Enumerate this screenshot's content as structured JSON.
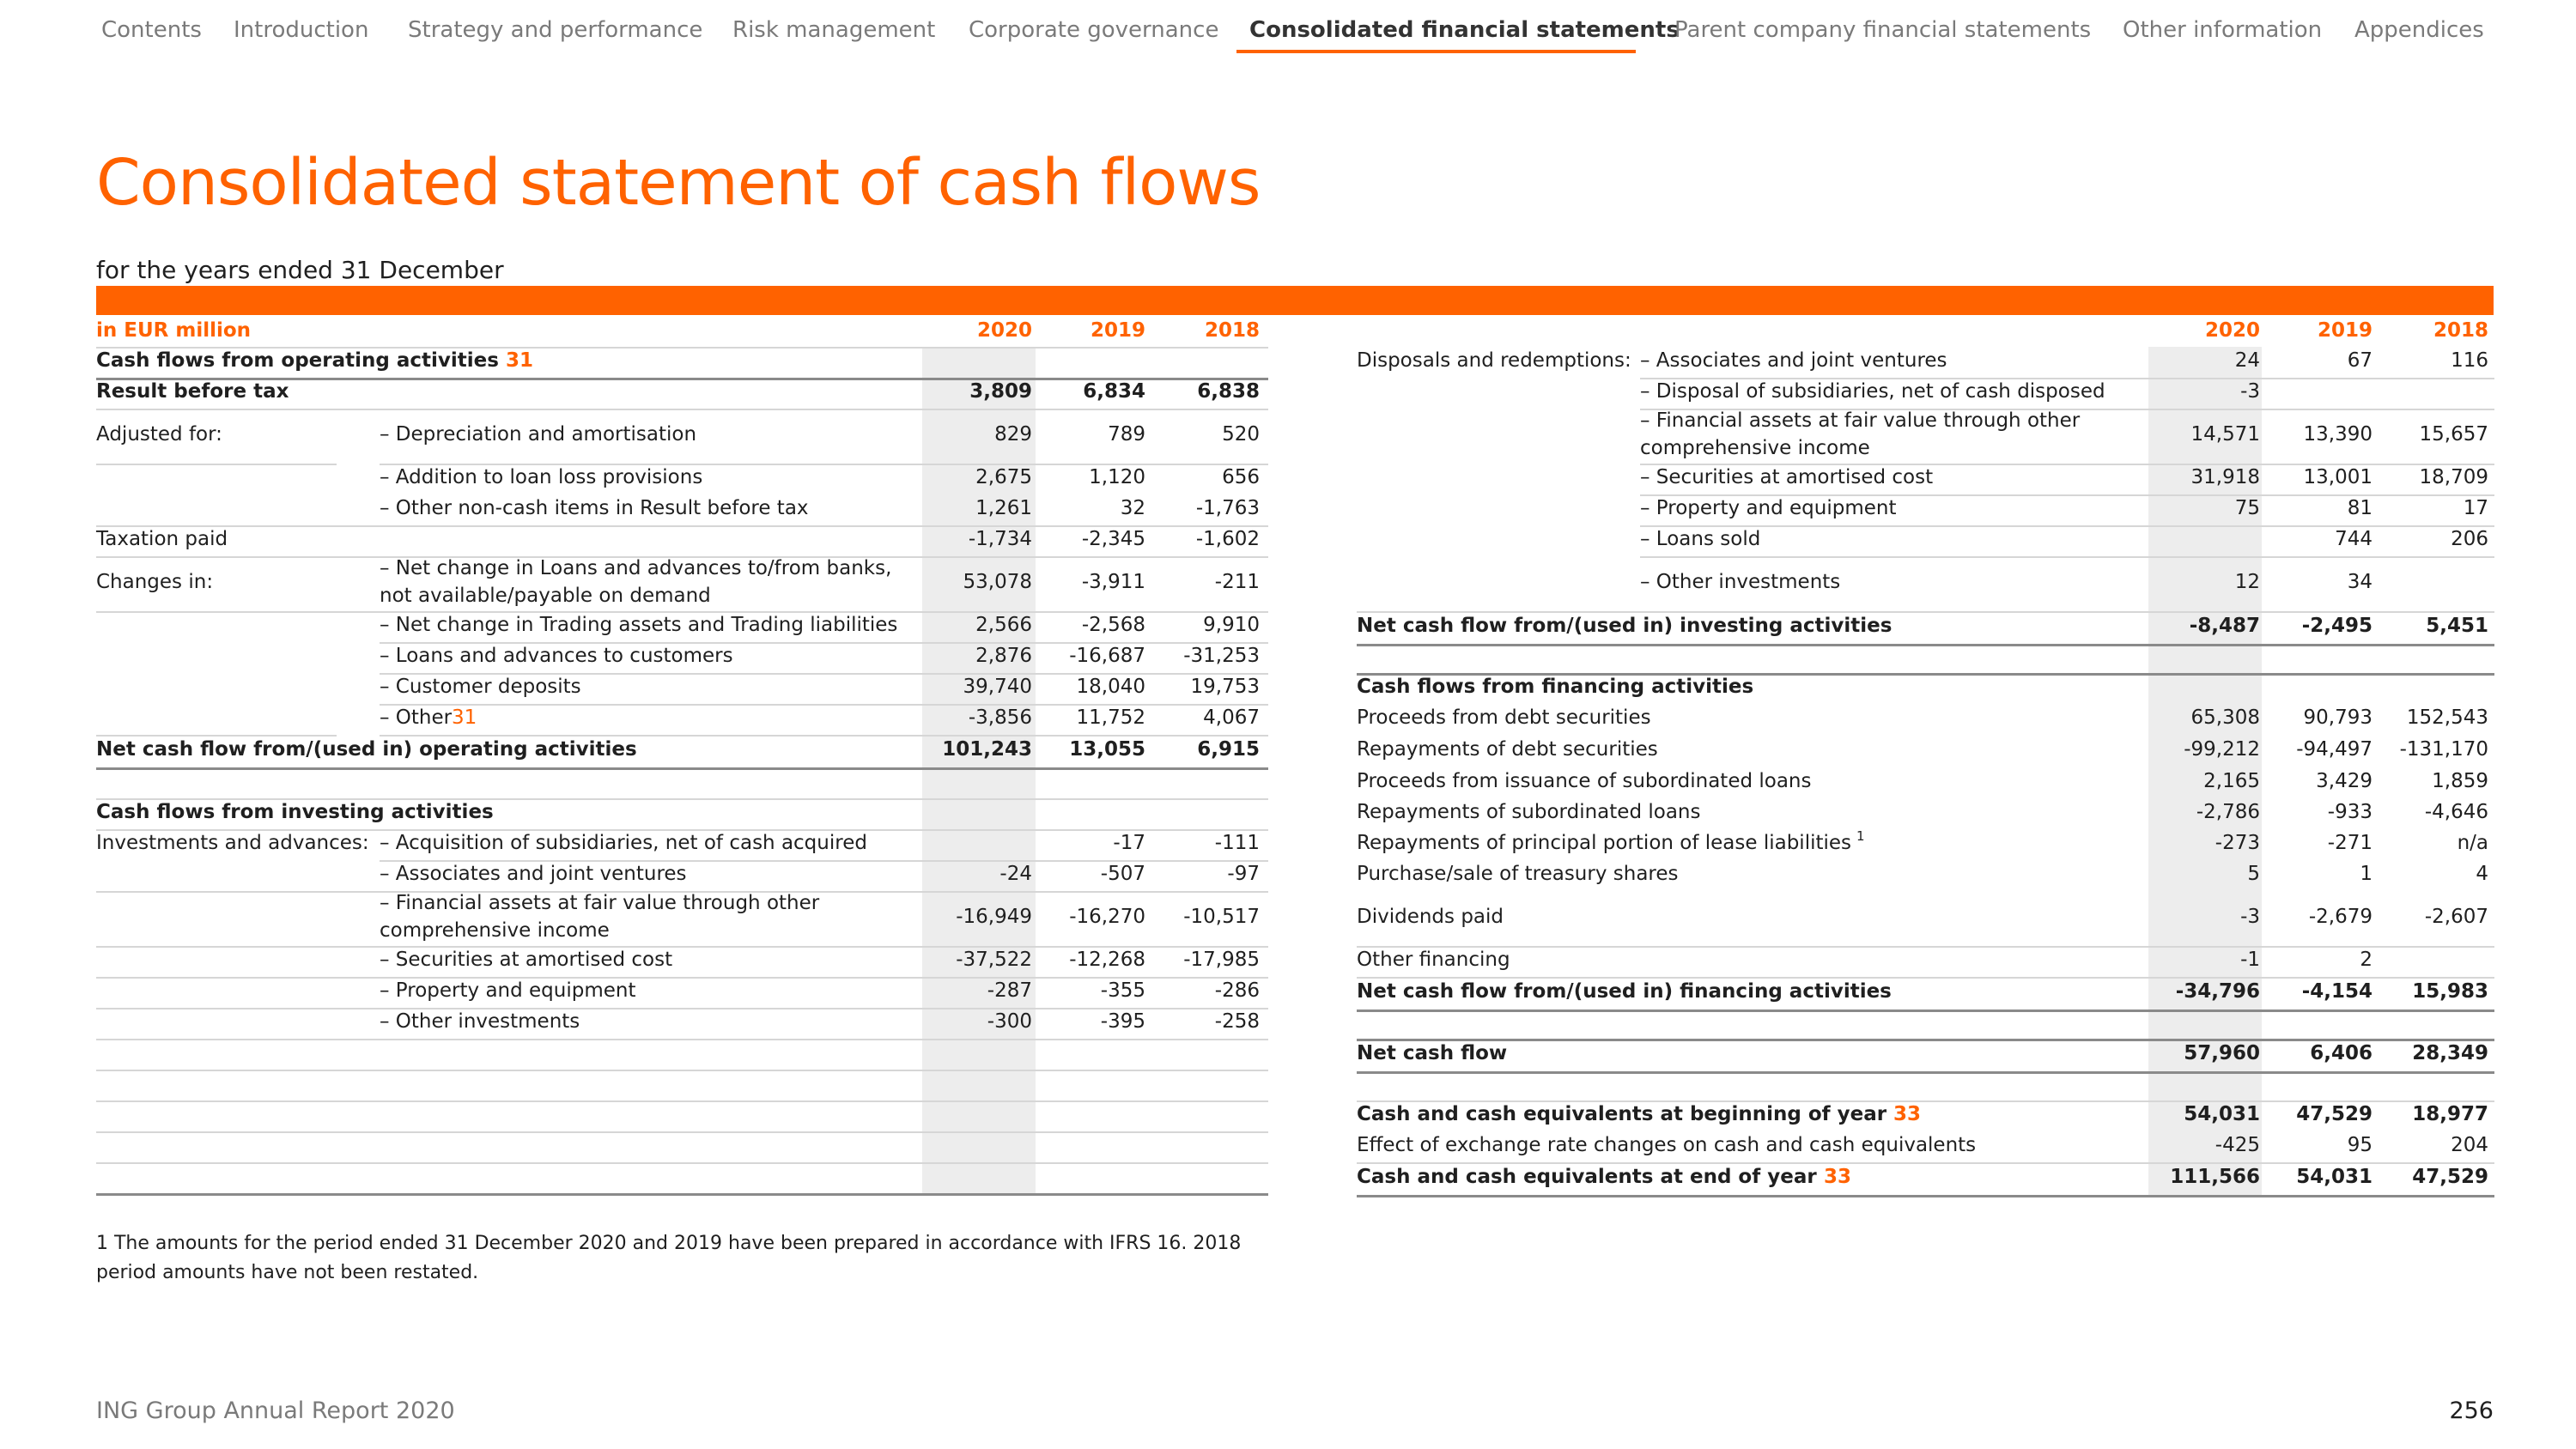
{
  "nav": {
    "items": [
      {
        "label": "Contents"
      },
      {
        "label": "Introduction"
      },
      {
        "label": "Strategy and performance"
      },
      {
        "label": "Risk management"
      },
      {
        "label": "Corporate governance"
      },
      {
        "label": "Consolidated financial statements"
      },
      {
        "label": "Parent company financial statements"
      },
      {
        "label": "Other information"
      },
      {
        "label": "Appendices"
      }
    ],
    "active_index": 5
  },
  "page": {
    "title": "Consolidated statement of cash flows",
    "subtitle": "for the years ended 31 December",
    "footnote": "1 The amounts for the period ended 31 December 2020 and 2019 have been prepared in accordance with IFRS 16. 2018 period amounts have not been restated.",
    "footer_left": "ING Group Annual Report 2020",
    "page_number": "256"
  },
  "colors": {
    "accent": "#ff6200",
    "shade": "#ededed",
    "text": "#1f1f1f",
    "muted": "#7a7a7a"
  },
  "left_table": {
    "unit_label": "in EUR million",
    "years": [
      "2020",
      "2019",
      "2018"
    ],
    "rows": [
      {
        "a": "Cash flows from operating activities",
        "ref": "31",
        "b": "",
        "v": [
          "",
          "",
          ""
        ],
        "bold": true
      },
      {
        "a": "Result before tax",
        "b": "",
        "v": [
          "3,809",
          "6,834",
          "6,838"
        ],
        "bold": true
      },
      {
        "a": "Adjusted for:",
        "b": "– Depreciation and amortisation",
        "v": [
          "829",
          "789",
          "520"
        ]
      },
      {
        "a": "",
        "b": "– Addition to loan loss provisions",
        "v": [
          "2,675",
          "1,120",
          "656"
        ]
      },
      {
        "a": "",
        "b": "– Other non-cash items in Result before tax",
        "v": [
          "1,261",
          "32",
          "-1,763"
        ]
      },
      {
        "a": "Taxation paid",
        "b": "",
        "v": [
          "-1,734",
          "-2,345",
          "-1,602"
        ]
      },
      {
        "a": "Changes in:",
        "b": "–  Net change in Loans and advances to/from banks,",
        "b2": "not available/payable on demand",
        "v": [
          "53,078",
          "-3,911",
          "-211"
        ]
      },
      {
        "a": "",
        "b": "–  Net change in Trading assets and Trading liabilities",
        "v": [
          "2,566",
          "-2,568",
          "9,910"
        ]
      },
      {
        "a": "",
        "b": "–  Loans and advances to customers",
        "v": [
          "2,876",
          "-16,687",
          "-31,253"
        ]
      },
      {
        "a": "",
        "b": "–  Customer deposits",
        "v": [
          "39,740",
          "18,040",
          "19,753"
        ]
      },
      {
        "a": "",
        "b": "–  Other",
        "bref": "31",
        "v": [
          "-3,856",
          "11,752",
          "4,067"
        ]
      },
      {
        "a": "Net cash flow from/(used in) operating activities",
        "b": "",
        "v": [
          "101,243",
          "13,055",
          "6,915"
        ],
        "bold": true
      },
      {
        "a": "",
        "b": "",
        "v": [
          "",
          "",
          ""
        ]
      },
      {
        "a": "Cash flows from investing activities",
        "b": "",
        "v": [
          "",
          "",
          ""
        ],
        "bold": true
      },
      {
        "a": "Investments and advances:",
        "b": "– Acquisition of subsidiaries, net of cash acquired",
        "v": [
          "",
          "-17",
          "-111"
        ]
      },
      {
        "a": "",
        "b": "– Associates and joint ventures",
        "v": [
          "-24",
          "-507",
          "-97"
        ]
      },
      {
        "a": "",
        "b": "– Financial assets at fair value through other",
        "b2": "comprehensive income",
        "v": [
          "-16,949",
          "-16,270",
          "-10,517"
        ]
      },
      {
        "a": "",
        "b": "– Securities at amortised cost",
        "v": [
          "-37,522",
          "-12,268",
          "-17,985"
        ]
      },
      {
        "a": "",
        "b": "– Property and equipment",
        "v": [
          "-287",
          "-355",
          "-286"
        ]
      },
      {
        "a": "",
        "b": "– Other investments",
        "v": [
          "-300",
          "-395",
          "-258"
        ]
      }
    ]
  },
  "right_table": {
    "years": [
      "2020",
      "2019",
      "2018"
    ],
    "rows": [
      {
        "a": "Disposals and redemptions:",
        "b": "– Associates and joint ventures",
        "v": [
          "24",
          "67",
          "116"
        ]
      },
      {
        "a": "",
        "b": "– Disposal of subsidiaries, net of cash disposed",
        "v": [
          "-3",
          "",
          ""
        ]
      },
      {
        "a": "",
        "b": "– Financial assets at fair value through other",
        "b2": "comprehensive income",
        "v": [
          "14,571",
          "13,390",
          "15,657"
        ]
      },
      {
        "a": "",
        "b": "– Securities at amortised cost",
        "v": [
          "31,918",
          "13,001",
          "18,709"
        ]
      },
      {
        "a": "",
        "b": "– Property and equipment",
        "v": [
          "75",
          "81",
          "17"
        ]
      },
      {
        "a": "",
        "b": "– Loans sold",
        "v": [
          "",
          "744",
          "206"
        ]
      },
      {
        "a": "",
        "b": "– Other investments",
        "v": [
          "12",
          "34",
          ""
        ]
      },
      {
        "a": "Net cash flow from/(used in) investing activities",
        "b": "",
        "v": [
          "-8,487",
          "-2,495",
          "5,451"
        ],
        "bold": true
      },
      {
        "a": "Cash flows from financing activities",
        "b": "",
        "v": [
          "",
          "",
          ""
        ],
        "bold": true
      },
      {
        "a": "Proceeds from debt securities",
        "b": "",
        "v": [
          "65,308",
          "90,793",
          "152,543"
        ]
      },
      {
        "a": "Repayments of debt securities",
        "b": "",
        "v": [
          "-99,212",
          "-94,497",
          "-131,170"
        ]
      },
      {
        "a": "Proceeds from issuance of subordinated loans",
        "b": "",
        "v": [
          "2,165",
          "3,429",
          "1,859"
        ]
      },
      {
        "a": "Repayments of subordinated loans",
        "b": "",
        "v": [
          "-2,786",
          "-933",
          "-4,646"
        ]
      },
      {
        "a": "Repayments of principal portion of lease liabilities",
        "sup": "1",
        "b": "",
        "v": [
          "-273",
          "-271",
          "n/a"
        ]
      },
      {
        "a": "Purchase/sale of treasury shares",
        "b": "",
        "v": [
          "5",
          "1",
          "4"
        ]
      },
      {
        "a": "Dividends paid",
        "b": "",
        "v": [
          "-3",
          "-2,679",
          "-2,607"
        ]
      },
      {
        "a": "Other financing",
        "b": "",
        "v": [
          "-1",
          "2",
          ""
        ]
      },
      {
        "a": "Net cash flow from/(used in) financing activities",
        "b": "",
        "v": [
          "-34,796",
          "-4,154",
          "15,983"
        ],
        "bold": true
      },
      {
        "a": "Net cash flow",
        "b": "",
        "v": [
          "57,960",
          "6,406",
          "28,349"
        ],
        "bold": true
      },
      {
        "a": "Cash and cash equivalents at beginning of year",
        "ref": "33",
        "b": "",
        "v": [
          "54,031",
          "47,529",
          "18,977"
        ],
        "bold": true
      },
      {
        "a": "Effect of exchange rate changes on cash and cash equivalents",
        "b": "",
        "v": [
          "-425",
          "95",
          "204"
        ]
      },
      {
        "a": "Cash and cash equivalents at end of year",
        "ref": "33",
        "b": "",
        "v": [
          "111,566",
          "54,031",
          "47,529"
        ],
        "bold": true
      }
    ]
  }
}
